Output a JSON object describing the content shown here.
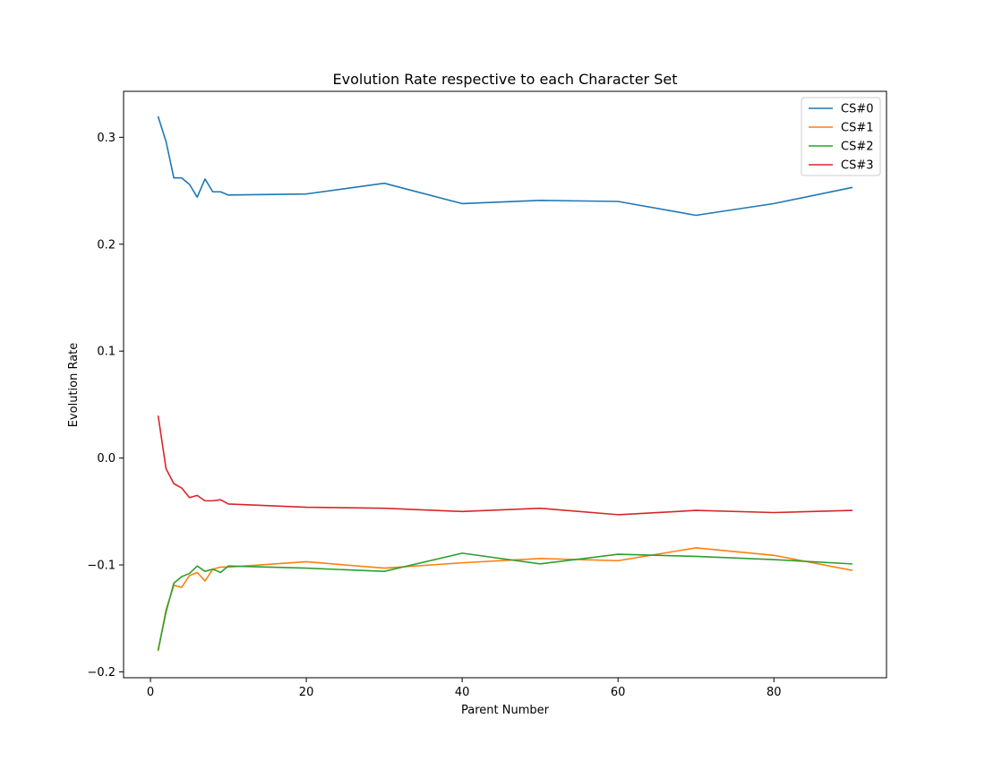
{
  "chart_data": {
    "type": "line",
    "title": "Evolution Rate respective to each Character Set",
    "xlabel": "Parent Number",
    "ylabel": "Evolution Rate",
    "xlim": [
      -3.45,
      94.45
    ],
    "ylim": [
      -0.2055,
      0.343
    ],
    "xticks": [
      0,
      20,
      40,
      60,
      80
    ],
    "yticks": [
      -0.2,
      -0.1,
      0.0,
      0.1,
      0.2,
      0.3
    ],
    "grid": false,
    "legend_position": "top-right",
    "x": [
      1,
      2,
      3,
      4,
      5,
      6,
      7,
      8,
      9,
      10,
      20,
      30,
      40,
      50,
      60,
      70,
      80,
      90
    ],
    "series": [
      {
        "name": "CS#0",
        "color": "#1f77b4",
        "values": [
          0.319,
          0.296,
          0.262,
          0.262,
          0.256,
          0.244,
          0.261,
          0.249,
          0.249,
          0.246,
          0.247,
          0.257,
          0.238,
          0.241,
          0.24,
          0.227,
          0.238,
          0.253
        ]
      },
      {
        "name": "CS#1",
        "color": "#ff7f0e",
        "values": [
          -0.18,
          -0.142,
          -0.119,
          -0.121,
          -0.11,
          -0.107,
          -0.115,
          -0.104,
          -0.102,
          -0.102,
          -0.097,
          -0.103,
          -0.098,
          -0.094,
          -0.096,
          -0.084,
          -0.091,
          -0.105
        ]
      },
      {
        "name": "CS#2",
        "color": "#2ca02c",
        "values": [
          -0.179,
          -0.144,
          -0.117,
          -0.111,
          -0.108,
          -0.101,
          -0.106,
          -0.104,
          -0.107,
          -0.101,
          -0.103,
          -0.106,
          -0.089,
          -0.099,
          -0.09,
          -0.092,
          -0.095,
          -0.099
        ]
      },
      {
        "name": "CS#3",
        "color": "#d62728",
        "values": [
          0.039,
          -0.01,
          -0.024,
          -0.028,
          -0.037,
          -0.035,
          -0.04,
          -0.04,
          -0.039,
          -0.043,
          -0.046,
          -0.047,
          -0.05,
          -0.047,
          -0.053,
          -0.049,
          -0.051,
          -0.049
        ]
      }
    ]
  }
}
